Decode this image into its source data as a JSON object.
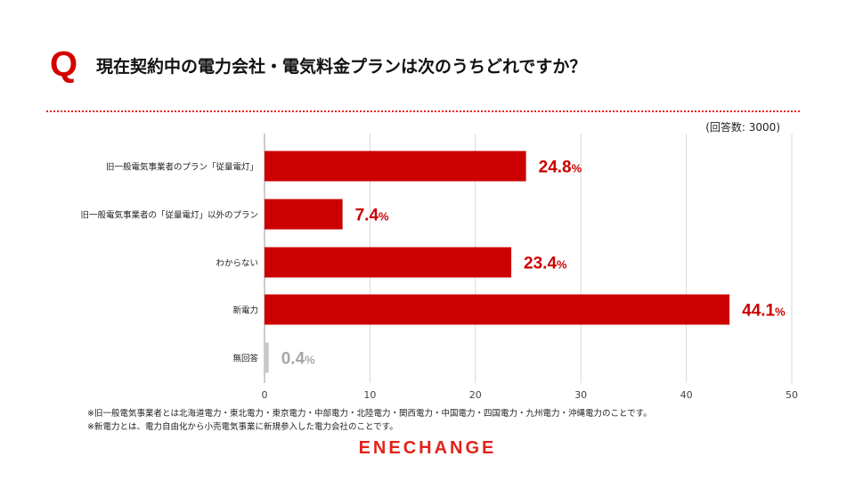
{
  "header": {
    "q_mark": "Q",
    "question": "現在契約中の電力会社・電気料金プランは次のうちどれですか？"
  },
  "sample_note": "(回答数: 3000)",
  "colors": {
    "bar": "#cc0000",
    "bar_muted": "#c8c8c8",
    "label": "#cc0000",
    "label_muted": "#a8a8a8",
    "grid": "#d9d9d9",
    "accent": "#e2231a"
  },
  "chart_data": {
    "type": "bar",
    "orientation": "horizontal",
    "title": "現在契約中の電力会社・電気料金プランは次のうちどれですか？",
    "xlabel": "",
    "ylabel": "",
    "xlim": [
      0,
      50
    ],
    "xticks": [
      0,
      10,
      20,
      30,
      40,
      50
    ],
    "grid": true,
    "value_suffix": "%",
    "categories": [
      "旧一般電気事業者のプラン「従量電灯」",
      "旧一般電気事業者の「従量電灯」以外のプラン",
      "わからない",
      "新電力",
      "無回答"
    ],
    "values": [
      24.8,
      7.4,
      23.4,
      44.1,
      0.4
    ],
    "value_labels": [
      "24.8",
      "7.4",
      "23.4",
      "44.1",
      "0.4"
    ],
    "muted": [
      false,
      false,
      false,
      false,
      true
    ]
  },
  "footnotes": [
    "※旧一般電気事業者とは北海道電力・東北電力・東京電力・中部電力・北陸電力・関西電力・中国電力・四国電力・九州電力・沖縄電力のことです。",
    "※新電力とは、電力自由化から小売電気事業に新規参入した電力会社のことです。"
  ],
  "brand": "ENECHANGE"
}
